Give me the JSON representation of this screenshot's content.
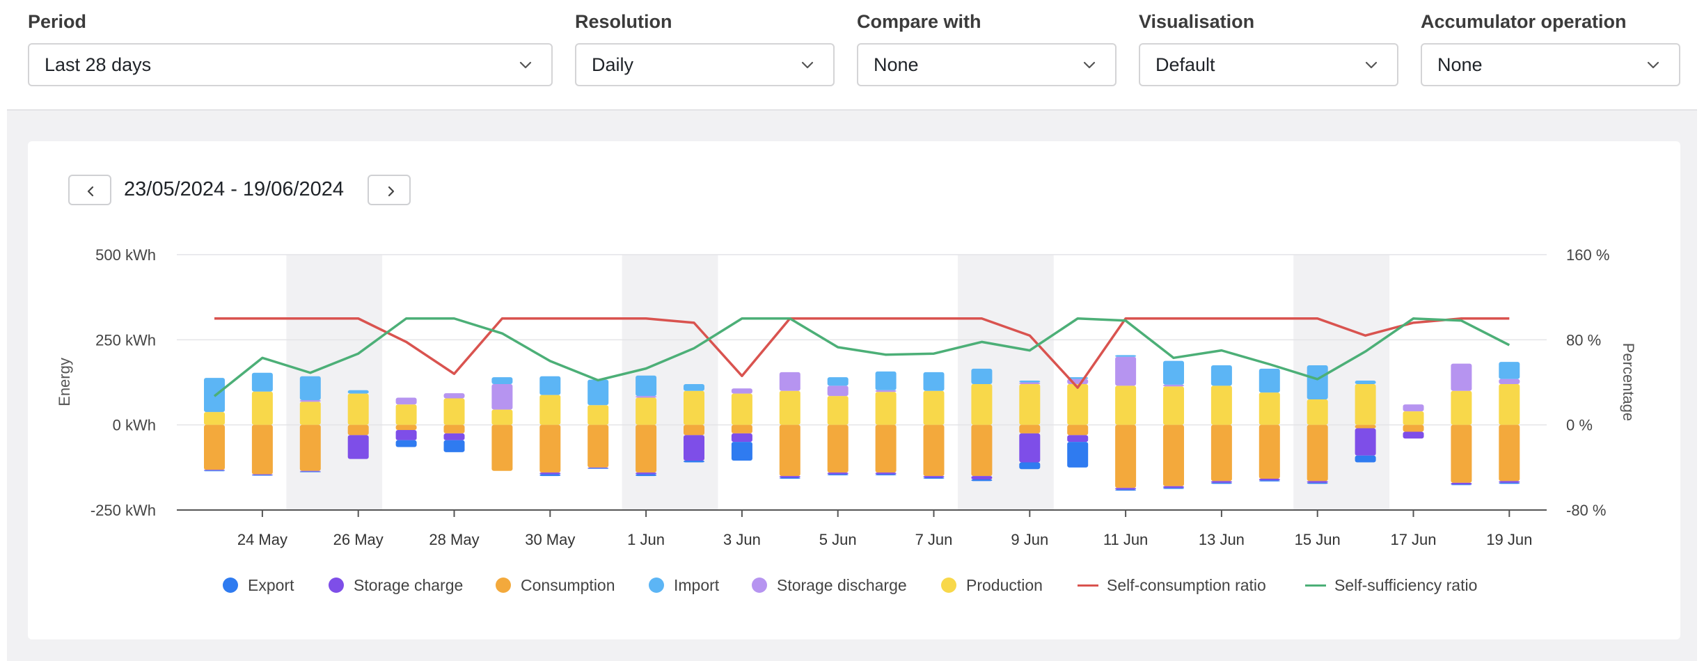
{
  "filters": [
    {
      "label": "Period",
      "value": "Last 28 days"
    },
    {
      "label": "Resolution",
      "value": "Daily"
    },
    {
      "label": "Compare with",
      "value": "None"
    },
    {
      "label": "Visualisation",
      "value": "Default"
    },
    {
      "label": "Accumulator operation",
      "value": "None"
    }
  ],
  "date_range": "23/05/2024 - 19/06/2024",
  "icons": {
    "prev": "chevron-left-icon",
    "next": "chevron-right-icon",
    "dropdown": "chevron-down-icon"
  },
  "chart_data": {
    "type": "bar",
    "categories": [
      "23 May",
      "24 May",
      "25 May",
      "26 May",
      "27 May",
      "28 May",
      "29 May",
      "30 May",
      "31 May",
      "1 Jun",
      "2 Jun",
      "3 Jun",
      "4 Jun",
      "5 Jun",
      "6 Jun",
      "7 Jun",
      "8 Jun",
      "9 Jun",
      "10 Jun",
      "11 Jun",
      "12 Jun",
      "13 Jun",
      "14 Jun",
      "15 Jun",
      "16 Jun",
      "17 Jun",
      "18 Jun",
      "19 Jun"
    ],
    "x_tick_labels": [
      "24 May",
      "26 May",
      "28 May",
      "30 May",
      "1 Jun",
      "3 Jun",
      "5 Jun",
      "7 Jun",
      "9 Jun",
      "11 Jun",
      "13 Jun",
      "15 Jun",
      "17 Jun",
      "19 Jun"
    ],
    "weekend_shading": [
      [
        "25 May",
        "26 May"
      ],
      [
        "1 Jun",
        "2 Jun"
      ],
      [
        "8 Jun",
        "9 Jun"
      ],
      [
        "15 Jun",
        "16 Jun"
      ]
    ],
    "ylabel": "Energy",
    "y2label": "Percentage",
    "ylim": [
      -250,
      500
    ],
    "y_ticks": [
      "500 kWh",
      "250 kWh",
      "0 kWh",
      "-250 kWh"
    ],
    "y2lim": [
      -80,
      160
    ],
    "y2_ticks": [
      "160 %",
      "80 %",
      "0 %",
      "-80 %"
    ],
    "grid": true,
    "legend_position": "bottom",
    "series": [
      {
        "name": "Export",
        "kind": "bar",
        "color": "#2f7bf0",
        "values": [
          -2,
          -2,
          -2,
          0,
          -20,
          -35,
          0,
          -5,
          -2,
          -5,
          -5,
          -55,
          -3,
          -3,
          -3,
          -3,
          -5,
          -20,
          -75,
          -3,
          -3,
          -3,
          -3,
          -3,
          -20,
          0,
          -2,
          -3
        ]
      },
      {
        "name": "Storage charge",
        "kind": "bar",
        "color": "#7e4ee8",
        "values": [
          -2,
          -2,
          -2,
          -70,
          -30,
          -20,
          0,
          -5,
          -2,
          -5,
          -75,
          -25,
          -5,
          -5,
          -5,
          -5,
          -10,
          -85,
          -20,
          -5,
          -5,
          -5,
          -5,
          -5,
          -80,
          -20,
          -5,
          -5
        ]
      },
      {
        "name": "Consumption",
        "kind": "bar",
        "color": "#f3a93c",
        "values": [
          -132,
          -145,
          -135,
          -30,
          -15,
          -25,
          -135,
          -140,
          -125,
          -140,
          -30,
          -25,
          -150,
          -140,
          -140,
          -150,
          -150,
          -25,
          -30,
          -185,
          -180,
          -165,
          -158,
          -165,
          -10,
          -20,
          -170,
          -165
        ]
      },
      {
        "name": "Import",
        "kind": "bar",
        "color": "#5cb5f5",
        "values": [
          100,
          55,
          70,
          10,
          0,
          0,
          20,
          55,
          75,
          60,
          20,
          0,
          0,
          25,
          55,
          55,
          45,
          5,
          5,
          5,
          70,
          60,
          70,
          100,
          10,
          0,
          0,
          50
        ]
      },
      {
        "name": "Storage discharge",
        "kind": "bar",
        "color": "#b694f0",
        "values": [
          0,
          0,
          5,
          0,
          20,
          15,
          75,
          0,
          0,
          5,
          0,
          15,
          55,
          30,
          5,
          0,
          0,
          5,
          15,
          85,
          5,
          0,
          0,
          0,
          0,
          20,
          80,
          15
        ]
      },
      {
        "name": "Production",
        "kind": "bar",
        "color": "#f8d84a",
        "values": [
          38,
          98,
          68,
          92,
          60,
          78,
          45,
          88,
          58,
          80,
          100,
          92,
          100,
          85,
          97,
          100,
          120,
          120,
          120,
          115,
          113,
          115,
          95,
          75,
          120,
          40,
          100,
          120
        ]
      },
      {
        "name": "Self-consumption ratio",
        "kind": "line",
        "axis": "right",
        "color": "#d9534f",
        "values": [
          100,
          100,
          100,
          100,
          78,
          48,
          100,
          100,
          100,
          100,
          96,
          46,
          100,
          100,
          100,
          100,
          100,
          84,
          35,
          100,
          100,
          100,
          100,
          100,
          84,
          96,
          100,
          100
        ]
      },
      {
        "name": "Self-sufficiency ratio",
        "kind": "line",
        "axis": "right",
        "color": "#4caf77",
        "values": [
          27,
          63,
          49,
          67,
          100,
          100,
          86,
          60,
          42,
          53,
          72,
          100,
          100,
          73,
          66,
          67,
          78,
          70,
          100,
          98,
          63,
          70,
          57,
          43,
          69,
          100,
          98,
          75
        ]
      }
    ]
  }
}
